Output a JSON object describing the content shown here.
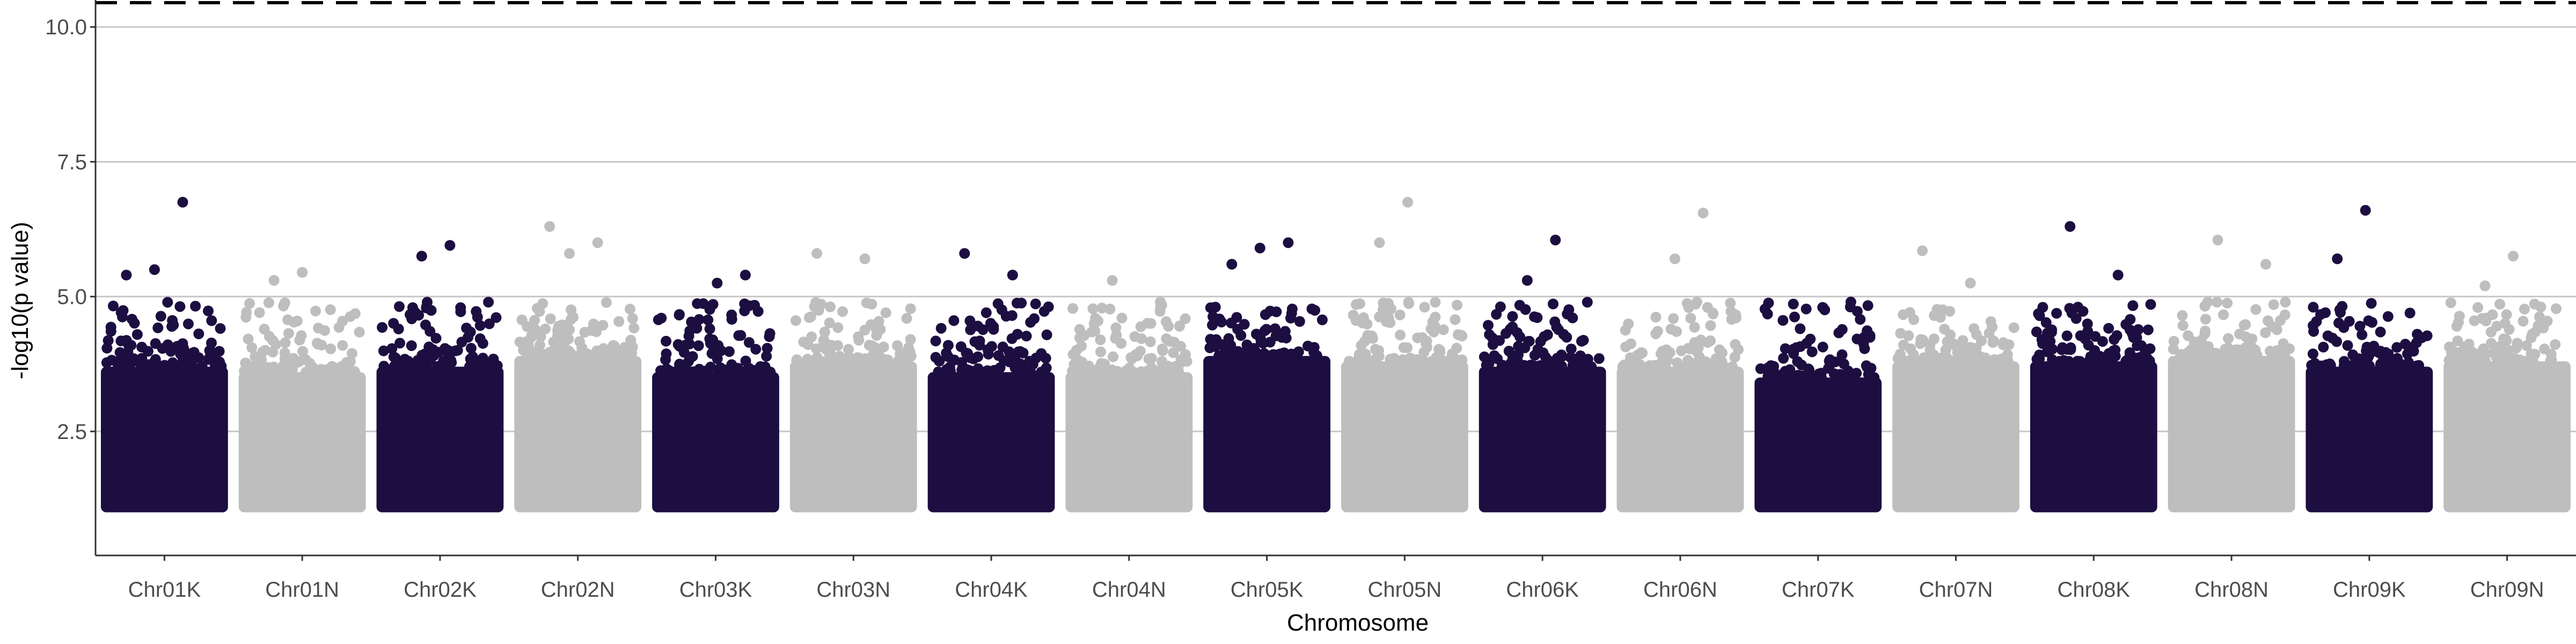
{
  "chart_data": {
    "type": "scatter",
    "subtype": "manhattan",
    "title": "",
    "xlabel": "Chromosome",
    "ylabel": "-log10(p value)",
    "ylim": [
      0.2,
      10.5
    ],
    "yticks": [
      2.5,
      5.0,
      7.5,
      10.0
    ],
    "ytick_labels": [
      "2.5",
      "5.0",
      "7.5",
      "10.0"
    ],
    "grid": {
      "horizontal_major": true,
      "vertical": false
    },
    "threshold_line": {
      "y": 10.45,
      "style": "dashed",
      "color": "#000000"
    },
    "colors": {
      "odd": "#1c0e40",
      "even": "#bebebe",
      "grid": "#c8c8c8",
      "axis": "#333333"
    },
    "categories": [
      "Chr01K",
      "Chr01N",
      "Chr02K",
      "Chr02N",
      "Chr03K",
      "Chr03N",
      "Chr04K",
      "Chr04N",
      "Chr05K",
      "Chr05N",
      "Chr06K",
      "Chr06N",
      "Chr07K",
      "Chr07N",
      "Chr08K",
      "Chr08N",
      "Chr09K",
      "Chr09N"
    ],
    "points_min": 1.0,
    "series": [
      {
        "chromosome": "Chr01K",
        "color": "odd",
        "band_max": 3.7,
        "notable_peaks": [
          5.4,
          5.5,
          6.75
        ]
      },
      {
        "chromosome": "Chr01N",
        "color": "even",
        "band_max": 3.6,
        "notable_peaks": [
          5.3,
          5.45
        ]
      },
      {
        "chromosome": "Chr02K",
        "color": "odd",
        "band_max": 3.7,
        "notable_peaks": [
          5.75,
          5.95
        ]
      },
      {
        "chromosome": "Chr02N",
        "color": "even",
        "band_max": 3.9,
        "notable_peaks": [
          5.8,
          6.0,
          6.3
        ]
      },
      {
        "chromosome": "Chr03K",
        "color": "odd",
        "band_max": 3.6,
        "notable_peaks": [
          5.25,
          5.4
        ]
      },
      {
        "chromosome": "Chr03N",
        "color": "even",
        "band_max": 3.8,
        "notable_peaks": [
          5.7,
          5.8
        ]
      },
      {
        "chromosome": "Chr04K",
        "color": "odd",
        "band_max": 3.6,
        "notable_peaks": [
          5.4,
          5.8
        ]
      },
      {
        "chromosome": "Chr04N",
        "color": "even",
        "band_max": 3.6,
        "notable_peaks": [
          4.9,
          5.3
        ]
      },
      {
        "chromosome": "Chr05K",
        "color": "odd",
        "band_max": 3.9,
        "notable_peaks": [
          5.6,
          5.9,
          6.0
        ]
      },
      {
        "chromosome": "Chr05N",
        "color": "even",
        "band_max": 3.8,
        "notable_peaks": [
          6.0,
          6.75
        ]
      },
      {
        "chromosome": "Chr06K",
        "color": "odd",
        "band_max": 3.7,
        "notable_peaks": [
          5.3,
          6.05
        ]
      },
      {
        "chromosome": "Chr06N",
        "color": "even",
        "band_max": 3.7,
        "notable_peaks": [
          5.7,
          6.55
        ]
      },
      {
        "chromosome": "Chr07K",
        "color": "odd",
        "band_max": 3.5,
        "notable_peaks": [
          4.8,
          4.9
        ]
      },
      {
        "chromosome": "Chr07N",
        "color": "even",
        "band_max": 3.8,
        "notable_peaks": [
          5.25,
          5.85
        ]
      },
      {
        "chromosome": "Chr08K",
        "color": "odd",
        "band_max": 3.8,
        "notable_peaks": [
          5.4,
          6.3
        ]
      },
      {
        "chromosome": "Chr08N",
        "color": "even",
        "band_max": 3.9,
        "notable_peaks": [
          5.6,
          6.05
        ]
      },
      {
        "chromosome": "Chr09K",
        "color": "odd",
        "band_max": 3.7,
        "notable_peaks": [
          5.7,
          6.6
        ]
      },
      {
        "chromosome": "Chr09N",
        "color": "even",
        "band_max": 3.8,
        "notable_peaks": [
          5.2,
          5.75
        ]
      }
    ]
  }
}
